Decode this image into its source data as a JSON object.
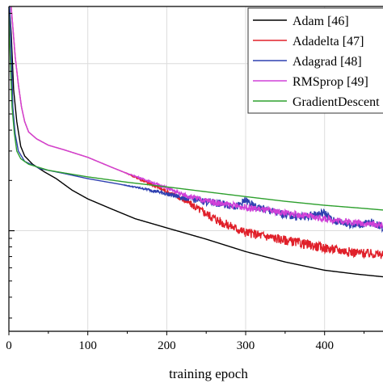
{
  "chart_data": {
    "type": "line",
    "title": "",
    "xlabel": "training epoch",
    "ylabel": "",
    "xlim": [
      0,
      474
    ],
    "xticks": [
      0,
      100,
      200,
      300,
      400
    ],
    "ylim_log": [
      0.025,
      2.2
    ],
    "ytick_values": [
      0.1,
      1
    ],
    "grid": true,
    "legend_position": "top-right",
    "series": [
      {
        "name": "Adam [46]",
        "color": "#000000",
        "noise": 0,
        "points": [
          [
            0,
            2.5
          ],
          [
            3,
            1.5
          ],
          [
            6,
            0.7
          ],
          [
            10,
            0.45
          ],
          [
            15,
            0.32
          ],
          [
            20,
            0.28
          ],
          [
            30,
            0.25
          ],
          [
            45,
            0.225
          ],
          [
            60,
            0.205
          ],
          [
            80,
            0.175
          ],
          [
            100,
            0.155
          ],
          [
            130,
            0.135
          ],
          [
            160,
            0.118
          ],
          [
            200,
            0.104
          ],
          [
            250,
            0.089
          ],
          [
            300,
            0.075
          ],
          [
            350,
            0.065
          ],
          [
            400,
            0.058
          ],
          [
            440,
            0.055
          ],
          [
            474,
            0.053
          ]
        ]
      },
      {
        "name": "Adadelta [47]",
        "color": "#e0202a",
        "noise": 0.065,
        "points": [
          [
            0,
            3.2
          ],
          [
            4,
            1.9
          ],
          [
            8,
            1.1
          ],
          [
            12,
            0.75
          ],
          [
            16,
            0.55
          ],
          [
            20,
            0.45
          ],
          [
            25,
            0.39
          ],
          [
            35,
            0.355
          ],
          [
            50,
            0.325
          ],
          [
            70,
            0.305
          ],
          [
            100,
            0.275
          ],
          [
            130,
            0.24
          ],
          [
            150,
            0.22
          ],
          [
            175,
            0.195
          ],
          [
            200,
            0.172
          ],
          [
            220,
            0.155
          ],
          [
            240,
            0.135
          ],
          [
            270,
            0.112
          ],
          [
            300,
            0.098
          ],
          [
            350,
            0.088
          ],
          [
            400,
            0.079
          ],
          [
            440,
            0.074
          ],
          [
            474,
            0.072
          ]
        ]
      },
      {
        "name": "Adagrad [48]",
        "color": "#2e40b0",
        "noise": 0.055,
        "points": [
          [
            0,
            2.8
          ],
          [
            3,
            1.2
          ],
          [
            5,
            0.55
          ],
          [
            8,
            0.38
          ],
          [
            12,
            0.3
          ],
          [
            20,
            0.26
          ],
          [
            40,
            0.235
          ],
          [
            70,
            0.22
          ],
          [
            100,
            0.205
          ],
          [
            140,
            0.19
          ],
          [
            180,
            0.175
          ],
          [
            220,
            0.158
          ],
          [
            260,
            0.147
          ],
          [
            290,
            0.14
          ],
          [
            300,
            0.152
          ],
          [
            310,
            0.14
          ],
          [
            340,
            0.128
          ],
          [
            370,
            0.12
          ],
          [
            400,
            0.128
          ],
          [
            410,
            0.115
          ],
          [
            440,
            0.108
          ],
          [
            460,
            0.112
          ],
          [
            474,
            0.105
          ]
        ]
      },
      {
        "name": "RMSprop [49]",
        "color": "#d040d8",
        "noise": 0.045,
        "points": [
          [
            0,
            3.0
          ],
          [
            4,
            1.9
          ],
          [
            8,
            1.1
          ],
          [
            12,
            0.75
          ],
          [
            16,
            0.55
          ],
          [
            20,
            0.45
          ],
          [
            25,
            0.39
          ],
          [
            35,
            0.355
          ],
          [
            50,
            0.325
          ],
          [
            70,
            0.305
          ],
          [
            100,
            0.275
          ],
          [
            130,
            0.24
          ],
          [
            150,
            0.22
          ],
          [
            175,
            0.2
          ],
          [
            200,
            0.18
          ],
          [
            220,
            0.165
          ],
          [
            240,
            0.155
          ],
          [
            270,
            0.145
          ],
          [
            300,
            0.138
          ],
          [
            350,
            0.128
          ],
          [
            400,
            0.118
          ],
          [
            440,
            0.112
          ],
          [
            474,
            0.108
          ]
        ]
      },
      {
        "name": "GradientDescent",
        "color": "#2ea02e",
        "noise": 0,
        "points": [
          [
            0,
            2.0
          ],
          [
            2,
            1.0
          ],
          [
            4,
            0.55
          ],
          [
            7,
            0.38
          ],
          [
            10,
            0.3
          ],
          [
            15,
            0.27
          ],
          [
            25,
            0.25
          ],
          [
            50,
            0.23
          ],
          [
            100,
            0.21
          ],
          [
            150,
            0.195
          ],
          [
            200,
            0.183
          ],
          [
            250,
            0.171
          ],
          [
            300,
            0.16
          ],
          [
            350,
            0.15
          ],
          [
            400,
            0.142
          ],
          [
            450,
            0.136
          ],
          [
            474,
            0.133
          ]
        ]
      }
    ]
  }
}
